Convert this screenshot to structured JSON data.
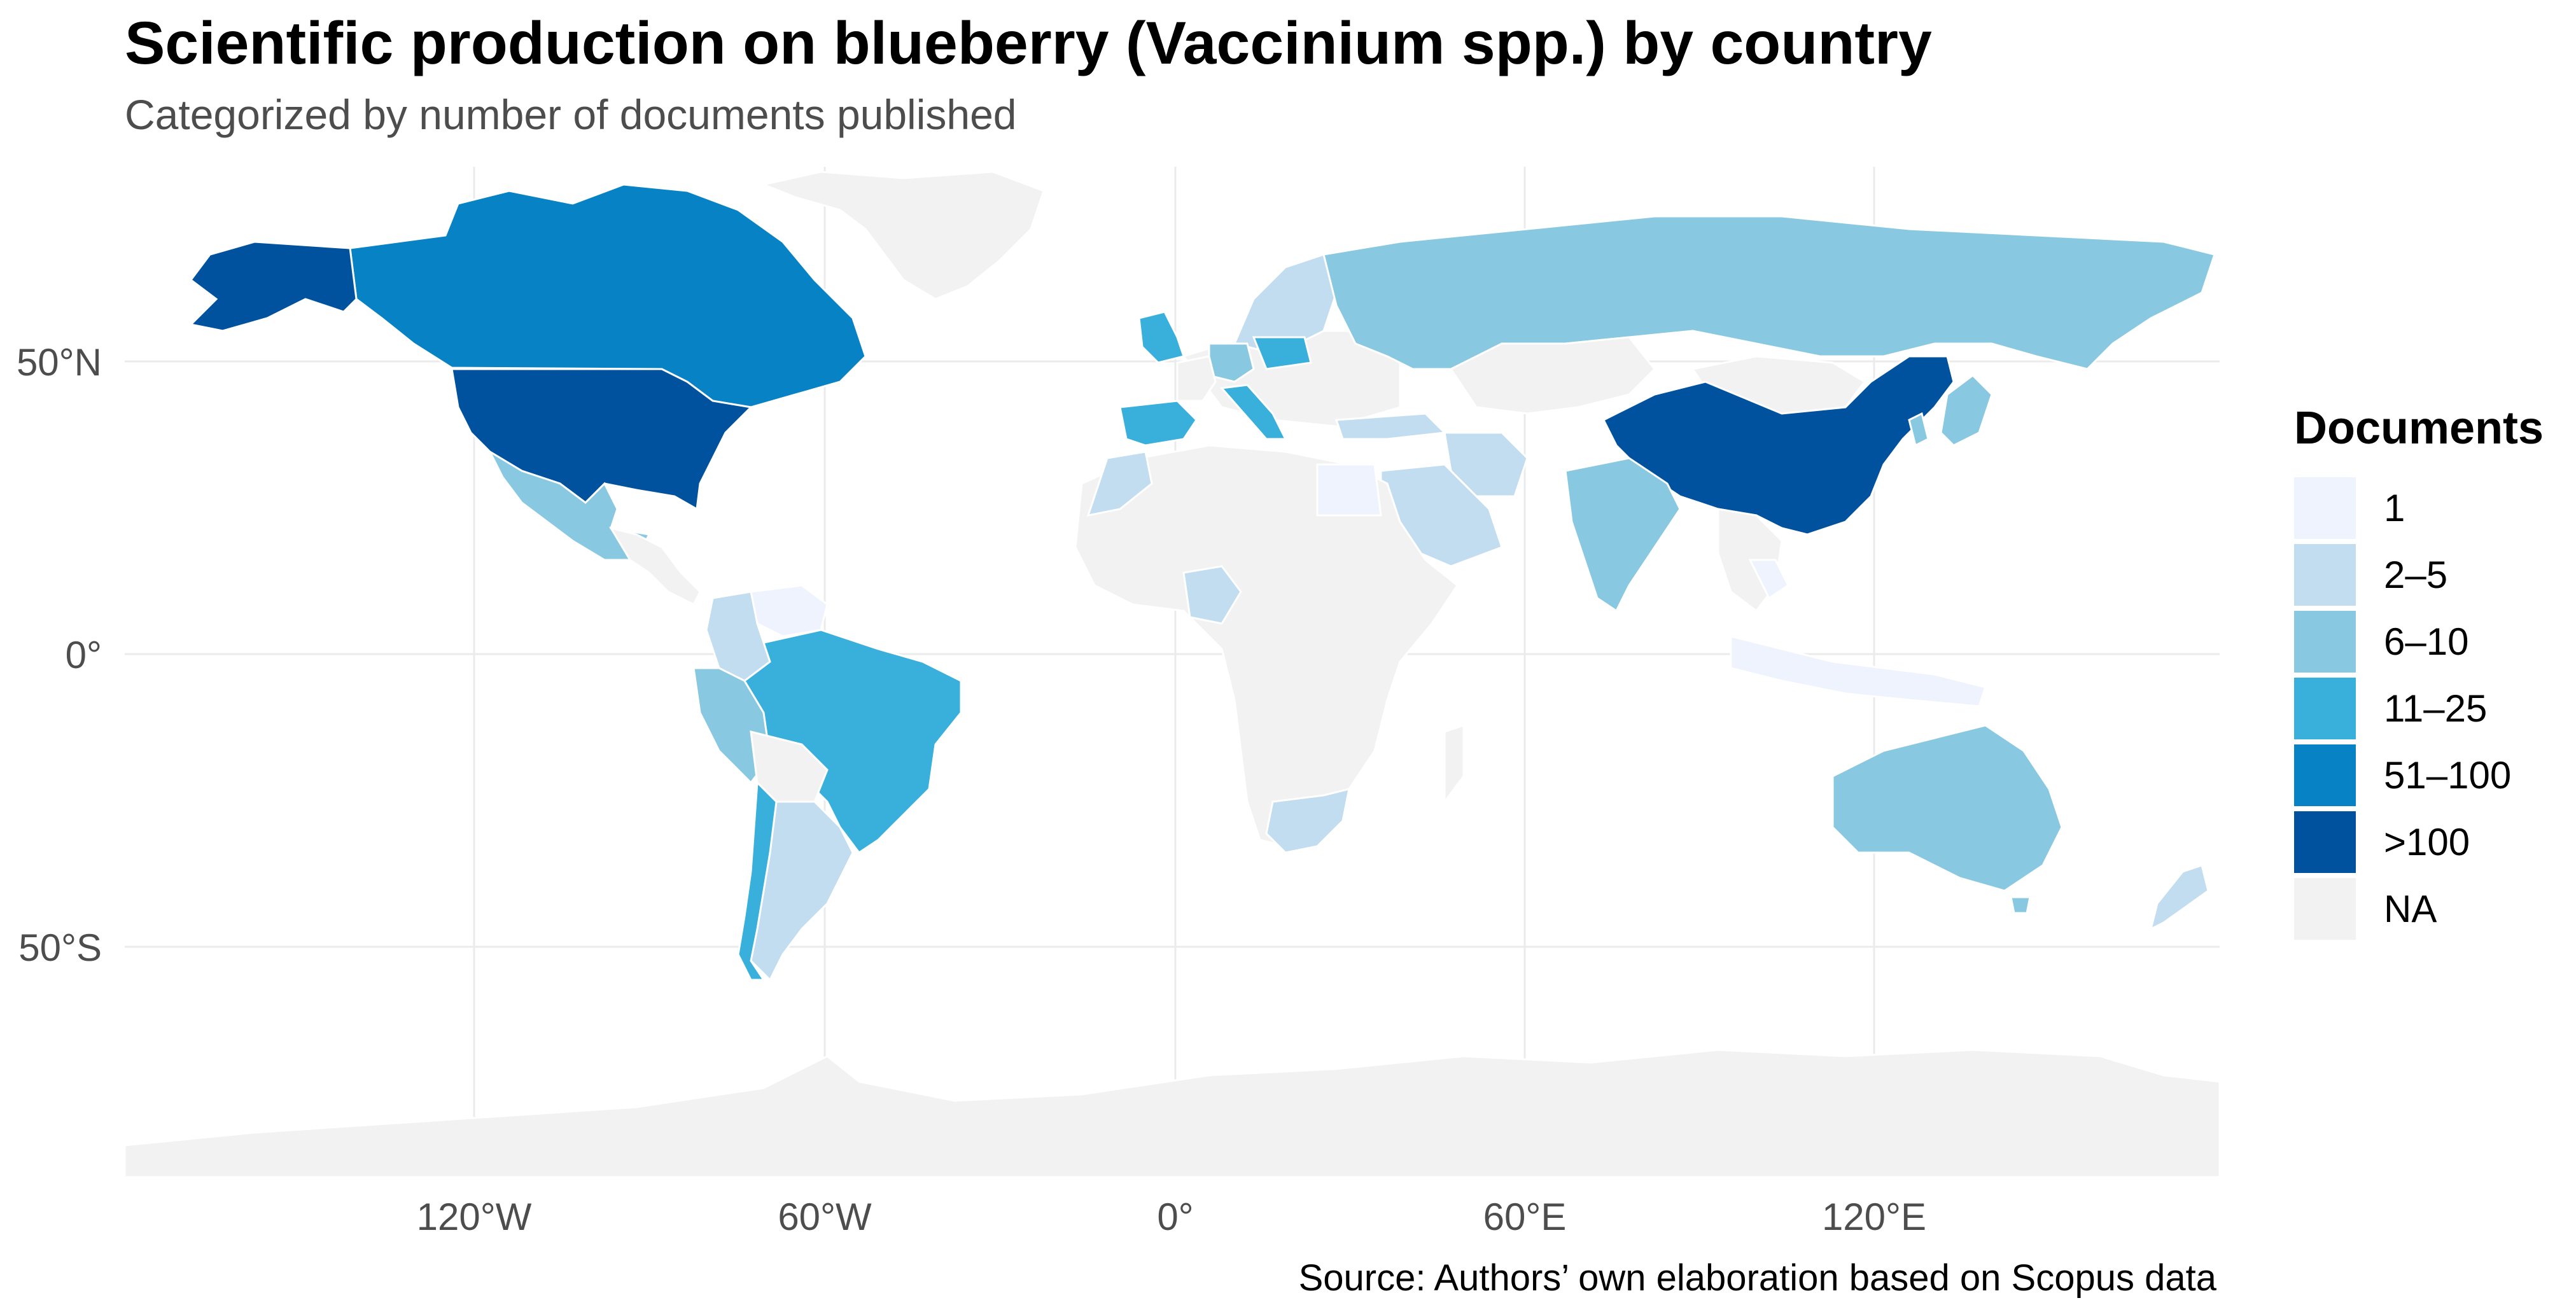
{
  "title": "Scientific production on blueberry (Vaccinium spp.) by country",
  "subtitle": "Categorized by number of documents published",
  "caption": "Source: Authors’ own elaboration based on Scopus data",
  "legend": {
    "title": "Documents",
    "items": [
      {
        "label": "1",
        "color": "#eef3fd"
      },
      {
        "label": "2–5",
        "color": "#c2dcf0"
      },
      {
        "label": "6–10",
        "color": "#89c8e1"
      },
      {
        "label": "11–25",
        "color": "#38b0db"
      },
      {
        "label": "51–100",
        "color": "#0782c4"
      },
      {
        "label": ">100",
        "color": "#00529e"
      },
      {
        "label": "NA",
        "color": "#f2f2f2"
      }
    ]
  },
  "axes": {
    "x_ticks": [
      "120°W",
      "60°W",
      "0°",
      "60°E",
      "120°E"
    ],
    "y_ticks": [
      "50°N",
      "0°",
      "50°S"
    ]
  },
  "map_data": {
    "projection": "equirectangular",
    "countries": [
      {
        "name": "United States",
        "category": ">100"
      },
      {
        "name": "China",
        "category": ">100"
      },
      {
        "name": "Canada",
        "category": "51–100"
      },
      {
        "name": "Brazil",
        "category": "11–25"
      },
      {
        "name": "Spain",
        "category": "11–25"
      },
      {
        "name": "Italy",
        "category": "11–25"
      },
      {
        "name": "Poland",
        "category": "11–25"
      },
      {
        "name": "United Kingdom",
        "category": "11–25"
      },
      {
        "name": "Chile",
        "category": "11–25"
      },
      {
        "name": "Russia",
        "category": "6–10"
      },
      {
        "name": "India",
        "category": "6–10"
      },
      {
        "name": "Australia",
        "category": "6–10"
      },
      {
        "name": "Mexico",
        "category": "6–10"
      },
      {
        "name": "Peru",
        "category": "6–10"
      },
      {
        "name": "Japan",
        "category": "6–10"
      },
      {
        "name": "South Korea",
        "category": "6–10"
      },
      {
        "name": "Germany",
        "category": "6–10"
      },
      {
        "name": "Argentina",
        "category": "2–5"
      },
      {
        "name": "Colombia",
        "category": "2–5"
      },
      {
        "name": "Saudi Arabia",
        "category": "2–5"
      },
      {
        "name": "Iran",
        "category": "2–5"
      },
      {
        "name": "Turkey",
        "category": "2–5"
      },
      {
        "name": "Nigeria",
        "category": "2–5"
      },
      {
        "name": "South Africa",
        "category": "2–5"
      },
      {
        "name": "Morocco",
        "category": "2–5"
      },
      {
        "name": "New Zealand",
        "category": "2–5"
      },
      {
        "name": "Finland",
        "category": "2–5"
      },
      {
        "name": "Egypt",
        "category": "1"
      },
      {
        "name": "Venezuela",
        "category": "1"
      },
      {
        "name": "Thailand",
        "category": "1"
      },
      {
        "name": "Indonesia",
        "category": "1"
      }
    ]
  }
}
